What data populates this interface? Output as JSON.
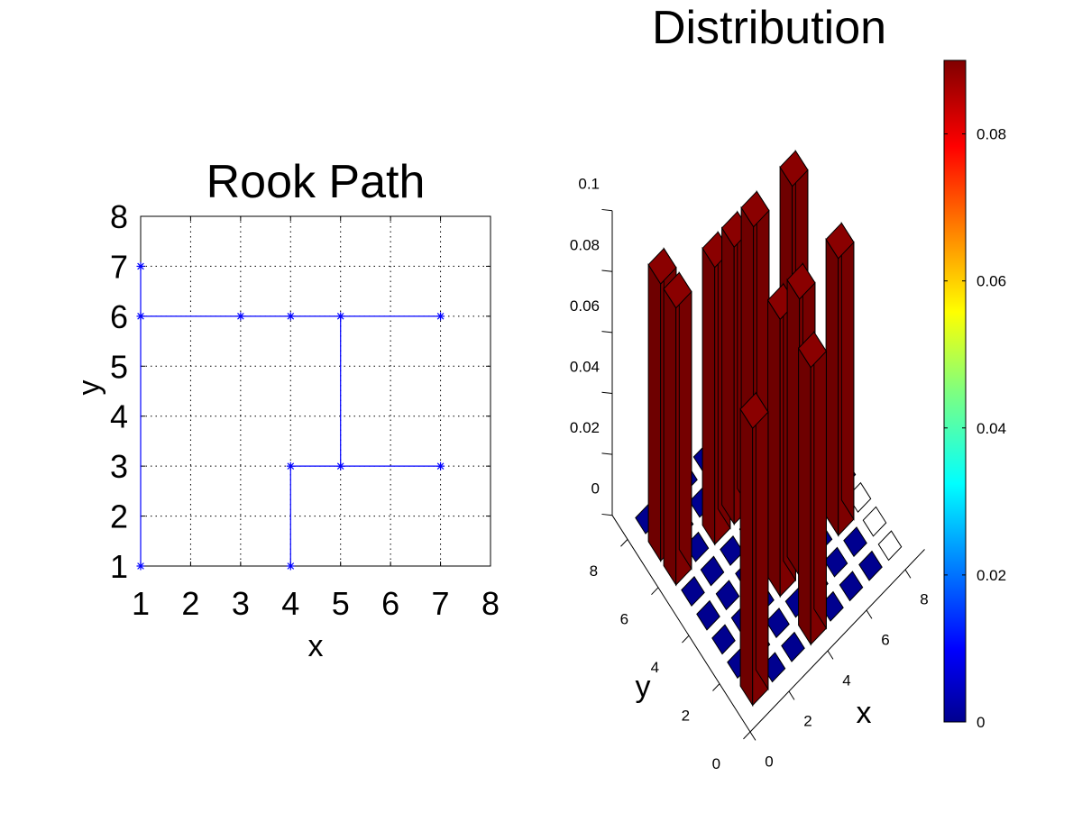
{
  "chart_data": [
    {
      "type": "line",
      "title": "Rook Path",
      "xlabel": "x",
      "ylabel": "y",
      "xlim": [
        1,
        8
      ],
      "ylim": [
        1,
        8
      ],
      "xticks": [
        1,
        2,
        3,
        4,
        5,
        6,
        7,
        8
      ],
      "yticks": [
        1,
        2,
        3,
        4,
        5,
        6,
        7,
        8
      ],
      "grid": true,
      "marker": "*",
      "color": "#0000ff",
      "path": [
        [
          4,
          1
        ],
        [
          4,
          3
        ],
        [
          7,
          3
        ],
        [
          5,
          3
        ],
        [
          5,
          6
        ],
        [
          7,
          6
        ],
        [
          4,
          6
        ],
        [
          3,
          6
        ],
        [
          1,
          6
        ],
        [
          1,
          7
        ],
        [
          1,
          1
        ]
      ]
    },
    {
      "type": "bar3d",
      "title": "Distribution",
      "xlabel": "x",
      "ylabel": "y",
      "zlim": [
        0,
        0.1
      ],
      "zticks": [
        "0",
        "0.02",
        "0.04",
        "0.06",
        "0.08",
        "0.1"
      ],
      "xticks": [
        "0",
        "2",
        "4",
        "6",
        "8"
      ],
      "yticks": [
        "0",
        "2",
        "4",
        "6",
        "8"
      ],
      "colorbar": {
        "min": 0,
        "max": 0.09,
        "ticks": [
          "0",
          "0.02",
          "0.04",
          "0.06",
          "0.08"
        ],
        "colormap": "jet"
      },
      "bars": [
        {
          "x": 1,
          "y": 7,
          "value": 0.0909
        },
        {
          "x": 1,
          "y": 6,
          "value": 0.0909
        },
        {
          "x": 1,
          "y": 1,
          "value": 0.0909
        },
        {
          "x": 3,
          "y": 6,
          "value": 0.0909
        },
        {
          "x": 4,
          "y": 6,
          "value": 0.0909
        },
        {
          "x": 5,
          "y": 6,
          "value": 0.0909
        },
        {
          "x": 7,
          "y": 6,
          "value": 0.0909
        },
        {
          "x": 4,
          "y": 3,
          "value": 0.0909
        },
        {
          "x": 5,
          "y": 3,
          "value": 0.0909
        },
        {
          "x": 7,
          "y": 3,
          "value": 0.0909
        },
        {
          "x": 4,
          "y": 1,
          "value": 0.0909
        }
      ],
      "zero_color": "#00008f",
      "empty_cells": [
        [
          8,
          1
        ],
        [
          8,
          2
        ],
        [
          8,
          3
        ]
      ]
    }
  ]
}
